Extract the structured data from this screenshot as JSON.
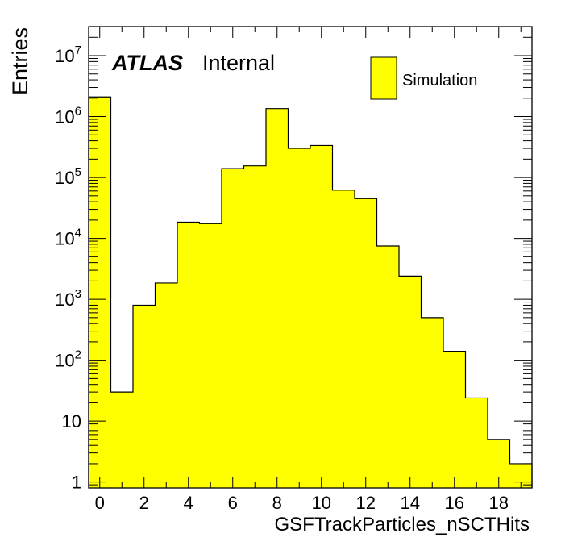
{
  "chart_data": {
    "type": "bar",
    "xlabel": "GSFTrackParticles_nSCTHits",
    "ylabel": "Entries",
    "yscale": "log",
    "ylim": [
      0.8,
      30000000
    ],
    "xlim": [
      -0.5,
      19.5
    ],
    "x_ticks": [
      0,
      2,
      4,
      6,
      8,
      10,
      12,
      14,
      16,
      18
    ],
    "y_ticks": [
      {
        "value": 1,
        "base": "1",
        "exp": ""
      },
      {
        "value": 10,
        "base": "10",
        "exp": ""
      },
      {
        "value": 100,
        "base": "10",
        "exp": "2"
      },
      {
        "value": 1000,
        "base": "10",
        "exp": "3"
      },
      {
        "value": 10000,
        "base": "10",
        "exp": "4"
      },
      {
        "value": 100000,
        "base": "10",
        "exp": "5"
      },
      {
        "value": 1000000,
        "base": "10",
        "exp": "6"
      },
      {
        "value": 10000000,
        "base": "10",
        "exp": "7"
      }
    ],
    "bin_width": 1,
    "bins": [
      {
        "x": 0,
        "value": 2100000
      },
      {
        "x": 1,
        "value": 30
      },
      {
        "x": 2,
        "value": 800
      },
      {
        "x": 3,
        "value": 1850
      },
      {
        "x": 4,
        "value": 18500
      },
      {
        "x": 5,
        "value": 17500
      },
      {
        "x": 6,
        "value": 140000
      },
      {
        "x": 7,
        "value": 155000
      },
      {
        "x": 8,
        "value": 1350000
      },
      {
        "x": 9,
        "value": 300000
      },
      {
        "x": 10,
        "value": 335000
      },
      {
        "x": 11,
        "value": 62000
      },
      {
        "x": 12,
        "value": 45000
      },
      {
        "x": 13,
        "value": 7500
      },
      {
        "x": 14,
        "value": 2400
      },
      {
        "x": 15,
        "value": 500
      },
      {
        "x": 16,
        "value": 140
      },
      {
        "x": 17,
        "value": 24
      },
      {
        "x": 18,
        "value": 5
      },
      {
        "x": 19,
        "value": 2
      }
    ],
    "fill_color": "#ffff00",
    "line_color": "#000000",
    "legend": {
      "entry": "Simulation",
      "placement": "top-right"
    },
    "label": {
      "experiment": "ATLAS",
      "status": "Internal"
    }
  }
}
